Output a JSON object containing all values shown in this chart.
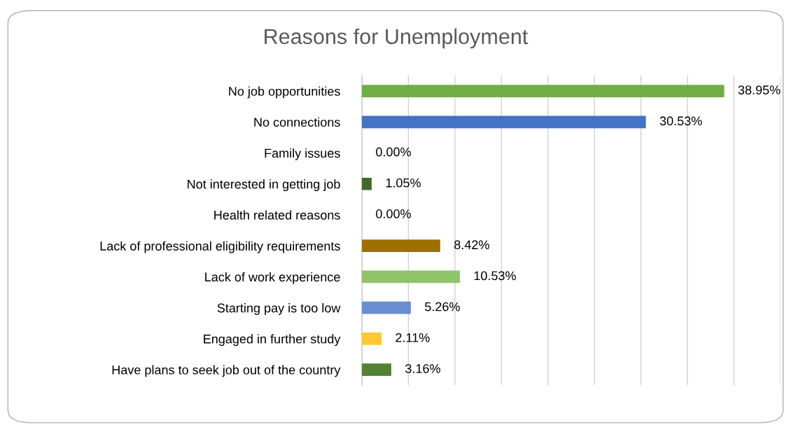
{
  "chart_data": {
    "type": "bar",
    "orientation": "horizontal",
    "title": "Reasons for Unemployment",
    "categories": [
      "No job opportunities",
      "No connections",
      "Family issues",
      "Not interested in getting job",
      "Health related reasons",
      "Lack of professional eligibility requirements",
      "Lack of work experience",
      "Starting pay is too low",
      "Engaged in further study",
      "Have plans to seek job out of the country"
    ],
    "values": [
      38.95,
      30.53,
      0.0,
      1.05,
      0.0,
      8.42,
      10.53,
      5.26,
      2.11,
      3.16
    ],
    "colors": [
      "#70ad47",
      "#4472c4",
      "#a5a5a5",
      "#43682b",
      "#255e91",
      "#9e7000",
      "#8fc46a",
      "#698ed0",
      "#ffc832",
      "#548235"
    ],
    "value_labels": [
      "38.95%",
      "30.53%",
      "0.00%",
      "1.05%",
      "0.00%",
      "8.42%",
      "10.53%",
      "5.26%",
      "2.11%",
      "3.16%"
    ],
    "xlim": [
      0,
      45
    ],
    "xticks": [
      0,
      5,
      10,
      15,
      20,
      25,
      30,
      35,
      40,
      45
    ],
    "tick_labels": "y",
    "grid": "x",
    "legend": false
  }
}
